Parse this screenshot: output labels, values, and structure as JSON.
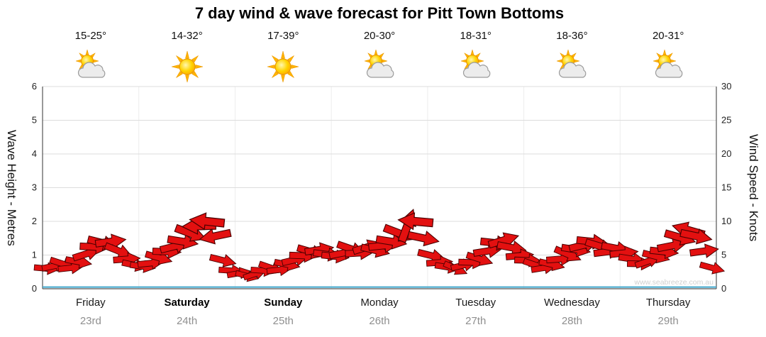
{
  "title": "7 day wind & wave forecast for Pitt Town Bottoms",
  "watermark": "www.seabreeze.com.au",
  "days": [
    {
      "name": "Friday",
      "date": "23rd",
      "temp": "15-25°",
      "icon": "sun-cloud",
      "bold": false
    },
    {
      "name": "Saturday",
      "date": "24th",
      "temp": "14-32°",
      "icon": "sun",
      "bold": true
    },
    {
      "name": "Sunday",
      "date": "25th",
      "temp": "17-39°",
      "icon": "sun",
      "bold": true
    },
    {
      "name": "Monday",
      "date": "26th",
      "temp": "20-30°",
      "icon": "sun-cloud",
      "bold": false
    },
    {
      "name": "Tuesday",
      "date": "27th",
      "temp": "18-31°",
      "icon": "sun-cloud",
      "bold": false
    },
    {
      "name": "Wednesday",
      "date": "28th",
      "temp": "18-36°",
      "icon": "sun-cloud",
      "bold": false
    },
    {
      "name": "Thursday",
      "date": "29th",
      "temp": "20-31°",
      "icon": "sun-cloud",
      "bold": false
    }
  ],
  "chart_data": {
    "type": "wind-arrows+line",
    "title": "7 day wind & wave forecast for Pitt Town Bottoms",
    "categories": [
      "Friday 23rd",
      "Saturday 24th",
      "Sunday 25th",
      "Monday 26th",
      "Tuesday 27th",
      "Wednesday 28th",
      "Thursday 29th"
    ],
    "points_per_day": 12,
    "left_axis": {
      "label": "Wave Height - Metres",
      "range": [
        0,
        6
      ],
      "ticks": [
        0,
        1,
        2,
        3,
        4,
        5,
        6
      ]
    },
    "right_axis": {
      "label": "Wind Speed - Knots",
      "range": [
        0,
        30
      ],
      "ticks": [
        0,
        5,
        10,
        15,
        20,
        25,
        30
      ]
    },
    "grid": true,
    "wind_speed_knots": [
      3.0,
      3.4,
      3.7,
      3.1,
      4.0,
      5.2,
      6.2,
      6.8,
      7.0,
      5.6,
      4.4,
      3.5,
      3.3,
      3.8,
      4.6,
      5.5,
      6.3,
      7.0,
      8.2,
      9.3,
      10.0,
      7.8,
      4.2,
      2.7,
      2.3,
      1.9,
      2.2,
      2.7,
      3.1,
      2.8,
      3.6,
      4.3,
      4.9,
      5.5,
      5.8,
      5.1,
      4.8,
      5.3,
      5.9,
      5.3,
      6.2,
      5.7,
      6.4,
      7.0,
      8.2,
      9.4,
      10.0,
      7.5,
      4.9,
      3.9,
      3.2,
      3.0,
      3.5,
      3.9,
      4.4,
      5.6,
      6.8,
      7.2,
      6.1,
      4.9,
      4.2,
      3.5,
      3.1,
      3.6,
      4.4,
      5.1,
      5.8,
      6.5,
      7.0,
      6.3,
      5.5,
      6.0,
      5.3,
      4.4,
      3.7,
      4.1,
      4.8,
      5.5,
      6.4,
      7.6,
      8.7,
      7.8,
      5.6,
      3.1
    ],
    "wind_dir_deg": [
      5,
      -12,
      18,
      -6,
      10,
      -18,
      3,
      14,
      -8,
      22,
      -4,
      12,
      8,
      -6,
      16,
      2,
      -14,
      9,
      20,
      178,
      186,
      168,
      14,
      4,
      -10,
      14,
      -18,
      4,
      19,
      -6,
      11,
      -13,
      2,
      16,
      -9,
      7,
      6,
      -11,
      19,
      -3,
      -17,
      13,
      -6,
      9,
      21,
      -70,
      185,
      12,
      14,
      -4,
      9,
      24,
      -13,
      2,
      18,
      -9,
      6,
      -17,
      11,
      -5,
      2,
      19,
      -9,
      13,
      -4,
      23,
      9,
      -14,
      6,
      17,
      -7,
      11,
      -6,
      9,
      1,
      -19,
      14,
      6,
      -11,
      16,
      196,
      12,
      -8,
      15
    ],
    "wave_height_metres": 0.05,
    "colors": {
      "arrow_fill": "#e31010",
      "arrow_stroke": "#4a0000",
      "wave_line": "#3fa7cc",
      "grid": "#dcdcdc",
      "day_grid": "#ededed",
      "axis": "#555555",
      "tick_text": "#222222"
    }
  }
}
